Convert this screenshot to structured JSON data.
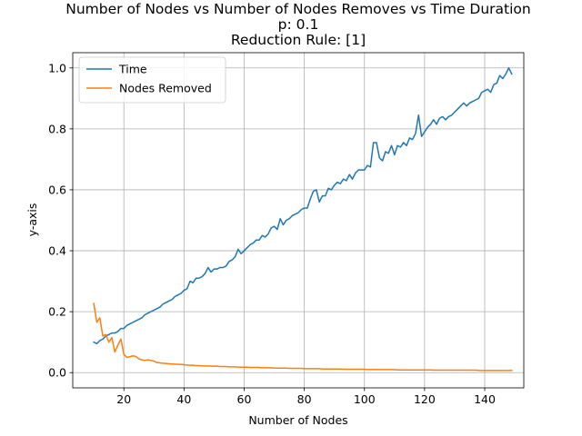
{
  "chart_data": {
    "type": "line",
    "title": "Number of Nodes vs Number of Nodes Removes vs Time Duration",
    "subtitle": "p: 0.1",
    "subtitle2": "Reduction Rule: [1]",
    "xlabel": "Number of Nodes",
    "ylabel": "y-axis",
    "xlim": [
      3,
      153
    ],
    "ylim": [
      -0.05,
      1.05
    ],
    "xticks": [
      20,
      40,
      60,
      80,
      100,
      120,
      140
    ],
    "yticks": [
      0.0,
      0.2,
      0.4,
      0.6,
      0.8,
      1.0
    ],
    "xtick_labels": [
      "20",
      "40",
      "60",
      "80",
      "100",
      "120",
      "140"
    ],
    "ytick_labels": [
      "0.0",
      "0.2",
      "0.4",
      "0.6",
      "0.8",
      "1.0"
    ],
    "grid": true,
    "legend_position": "upper-left",
    "series": [
      {
        "name": "Time",
        "color": "#1f77b4",
        "x": [
          10,
          11,
          12,
          13,
          14,
          15,
          16,
          17,
          18,
          19,
          20,
          21,
          22,
          23,
          24,
          25,
          26,
          27,
          28,
          29,
          30,
          31,
          32,
          33,
          34,
          35,
          36,
          37,
          38,
          39,
          40,
          41,
          42,
          43,
          44,
          45,
          46,
          47,
          48,
          49,
          50,
          51,
          52,
          53,
          54,
          55,
          56,
          57,
          58,
          59,
          60,
          61,
          62,
          63,
          64,
          65,
          66,
          67,
          68,
          69,
          70,
          71,
          72,
          73,
          74,
          75,
          76,
          77,
          78,
          79,
          80,
          81,
          82,
          83,
          84,
          85,
          86,
          87,
          88,
          89,
          90,
          91,
          92,
          93,
          94,
          95,
          96,
          97,
          98,
          99,
          100,
          101,
          102,
          103,
          104,
          105,
          106,
          107,
          108,
          109,
          110,
          111,
          112,
          113,
          114,
          115,
          116,
          117,
          118,
          119,
          120,
          121,
          122,
          123,
          124,
          125,
          126,
          127,
          128,
          129,
          130,
          131,
          132,
          133,
          134,
          135,
          136,
          137,
          138,
          139,
          140,
          141,
          142,
          143,
          144,
          145,
          146,
          147,
          148,
          149
        ],
        "y": [
          0.1,
          0.095,
          0.105,
          0.11,
          0.12,
          0.125,
          0.13,
          0.13,
          0.135,
          0.145,
          0.145,
          0.155,
          0.16,
          0.165,
          0.17,
          0.175,
          0.18,
          0.19,
          0.195,
          0.2,
          0.205,
          0.21,
          0.215,
          0.225,
          0.23,
          0.235,
          0.24,
          0.25,
          0.255,
          0.26,
          0.27,
          0.275,
          0.3,
          0.295,
          0.31,
          0.31,
          0.315,
          0.325,
          0.345,
          0.33,
          0.34,
          0.34,
          0.345,
          0.345,
          0.35,
          0.365,
          0.37,
          0.38,
          0.405,
          0.39,
          0.4,
          0.41,
          0.42,
          0.425,
          0.435,
          0.435,
          0.45,
          0.445,
          0.455,
          0.475,
          0.48,
          0.47,
          0.505,
          0.485,
          0.5,
          0.505,
          0.515,
          0.52,
          0.525,
          0.535,
          0.54,
          0.54,
          0.57,
          0.595,
          0.6,
          0.56,
          0.58,
          0.58,
          0.605,
          0.6,
          0.615,
          0.625,
          0.62,
          0.635,
          0.63,
          0.65,
          0.635,
          0.655,
          0.665,
          0.665,
          0.665,
          0.68,
          0.675,
          0.755,
          0.755,
          0.705,
          0.695,
          0.725,
          0.72,
          0.745,
          0.715,
          0.745,
          0.74,
          0.755,
          0.745,
          0.77,
          0.765,
          0.785,
          0.845,
          0.775,
          0.79,
          0.805,
          0.815,
          0.83,
          0.815,
          0.835,
          0.84,
          0.83,
          0.84,
          0.845,
          0.855,
          0.865,
          0.875,
          0.885,
          0.875,
          0.885,
          0.89,
          0.895,
          0.9,
          0.92,
          0.925,
          0.93,
          0.92,
          0.945,
          0.95,
          0.975,
          0.965,
          0.98,
          1.0,
          0.98
        ]
      },
      {
        "name": "Nodes Removed",
        "color": "#ff7f0e",
        "x": [
          10,
          11,
          12,
          13,
          14,
          15,
          16,
          17,
          18,
          19,
          20,
          21,
          22,
          23,
          24,
          25,
          26,
          27,
          28,
          29,
          30,
          31,
          32,
          33,
          34,
          35,
          36,
          37,
          38,
          39,
          40,
          41,
          42,
          43,
          44,
          45,
          46,
          47,
          48,
          49,
          50,
          51,
          52,
          53,
          54,
          55,
          56,
          57,
          58,
          59,
          60,
          61,
          62,
          63,
          64,
          65,
          66,
          67,
          68,
          69,
          70,
          71,
          72,
          73,
          74,
          75,
          76,
          77,
          78,
          79,
          80,
          81,
          82,
          83,
          84,
          85,
          86,
          87,
          88,
          89,
          90,
          91,
          92,
          93,
          94,
          95,
          96,
          97,
          98,
          99,
          100,
          101,
          102,
          103,
          104,
          105,
          106,
          107,
          108,
          109,
          110,
          111,
          112,
          113,
          114,
          115,
          116,
          117,
          118,
          119,
          120,
          121,
          122,
          123,
          124,
          125,
          126,
          127,
          128,
          129,
          130,
          131,
          132,
          133,
          134,
          135,
          136,
          137,
          138,
          139,
          140,
          141,
          142,
          143,
          144,
          145,
          146,
          147,
          148,
          149
        ],
        "y": [
          0.227,
          0.165,
          0.18,
          0.12,
          0.125,
          0.1,
          0.115,
          0.068,
          0.09,
          0.11,
          0.06,
          0.05,
          0.052,
          0.055,
          0.053,
          0.045,
          0.042,
          0.04,
          0.042,
          0.04,
          0.038,
          0.033,
          0.032,
          0.031,
          0.03,
          0.029,
          0.028,
          0.028,
          0.027,
          0.027,
          0.026,
          0.025,
          0.024,
          0.024,
          0.023,
          0.023,
          0.022,
          0.022,
          0.022,
          0.021,
          0.021,
          0.021,
          0.02,
          0.02,
          0.02,
          0.019,
          0.019,
          0.019,
          0.018,
          0.018,
          0.018,
          0.018,
          0.017,
          0.017,
          0.017,
          0.017,
          0.016,
          0.016,
          0.016,
          0.016,
          0.015,
          0.015,
          0.015,
          0.015,
          0.015,
          0.014,
          0.014,
          0.014,
          0.014,
          0.014,
          0.013,
          0.013,
          0.013,
          0.013,
          0.013,
          0.013,
          0.012,
          0.012,
          0.012,
          0.012,
          0.012,
          0.012,
          0.012,
          0.011,
          0.011,
          0.011,
          0.011,
          0.011,
          0.011,
          0.011,
          0.011,
          0.01,
          0.01,
          0.01,
          0.01,
          0.01,
          0.01,
          0.01,
          0.01,
          0.01,
          0.01,
          0.009,
          0.009,
          0.009,
          0.009,
          0.009,
          0.009,
          0.009,
          0.009,
          0.009,
          0.009,
          0.009,
          0.009,
          0.008,
          0.008,
          0.008,
          0.008,
          0.008,
          0.008,
          0.008,
          0.008,
          0.008,
          0.008,
          0.008,
          0.008,
          0.008,
          0.008,
          0.008,
          0.007,
          0.007,
          0.007,
          0.007,
          0.007,
          0.007,
          0.007,
          0.007,
          0.007,
          0.007,
          0.007,
          0.007
        ]
      }
    ]
  }
}
